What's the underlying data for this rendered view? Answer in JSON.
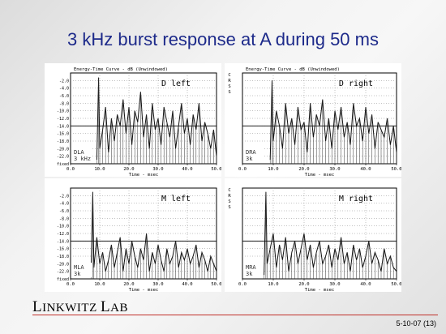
{
  "slide": {
    "title": "3 kHz burst response at A during 50 ms",
    "brand_first": "L",
    "brand_rest1": "INKWITZ ",
    "brand_second": "L",
    "brand_rest2": "AB",
    "date_page": "5-10-07 (13)"
  },
  "chart_data": [
    {
      "type": "line",
      "title": "Energy-Time Curve - dB (Unwindowed)",
      "panel_label": "D left",
      "annotation": [
        "DLA",
        "3 kHz"
      ],
      "xlabel": "Time - msec",
      "xlim": [
        0,
        50
      ],
      "ylim": [
        -24,
        0
      ],
      "xticks": [
        "0.0",
        "10.0",
        "20.0",
        "30.0",
        "40.0",
        "50.0"
      ],
      "yticks": [
        "-2.0",
        "-4.0",
        "-6.0",
        "-8.0",
        "-10.0",
        "-12.0",
        "-14.0",
        "-16.0",
        "-18.0",
        "-20.0",
        "-22.0"
      ],
      "y_bottom_label": "fixed",
      "reference_line": -14,
      "x": [
        9,
        9.6,
        10,
        11,
        12,
        13,
        14,
        15,
        16,
        17,
        18,
        19,
        20,
        21,
        22,
        23,
        24,
        25,
        26,
        27,
        28,
        29,
        30,
        31,
        32,
        33,
        34,
        35,
        36,
        37,
        38,
        39,
        40,
        41,
        42,
        43,
        44,
        45,
        46,
        47,
        48,
        49,
        50
      ],
      "y": [
        -23,
        -1.2,
        -20,
        -15,
        -9,
        -21,
        -12,
        -18,
        -11,
        -14,
        -7,
        -16,
        -9,
        -19,
        -10,
        -13,
        -5,
        -17,
        -11,
        -20,
        -8,
        -15,
        -12,
        -19,
        -9,
        -13,
        -17,
        -10,
        -20,
        -14,
        -8,
        -16,
        -12,
        -19,
        -11,
        -15,
        -8,
        -18,
        -13,
        -16,
        -20,
        -15,
        -22
      ]
    },
    {
      "type": "line",
      "title": "Energy-Time Curve - dB (Unwindowed)",
      "panel_label": "D right",
      "annotation": [
        "DRA",
        "3k"
      ],
      "side_label": "CRSS",
      "xlabel": "Time - msec",
      "xlim": [
        0,
        50
      ],
      "ylim": [
        -24,
        0
      ],
      "xticks": [
        "0.0",
        "10.0",
        "20.0",
        "30.0",
        "40.0",
        "50.0"
      ],
      "reference_line": -14,
      "x": [
        9,
        9.6,
        10,
        11,
        12,
        13,
        14,
        15,
        16,
        17,
        18,
        19,
        20,
        21,
        22,
        23,
        24,
        25,
        26,
        27,
        28,
        29,
        30,
        31,
        32,
        33,
        34,
        35,
        36,
        37,
        38,
        39,
        40,
        41,
        42,
        43,
        44,
        45,
        46,
        47,
        48,
        49,
        50
      ],
      "y": [
        -23,
        -2,
        -18,
        -10,
        -14,
        -20,
        -8,
        -16,
        -12,
        -19,
        -9,
        -15,
        -13,
        -21,
        -8,
        -17,
        -11,
        -14,
        -7,
        -18,
        -12,
        -20,
        -10,
        -15,
        -9,
        -17,
        -13,
        -19,
        -8,
        -14,
        -12,
        -18,
        -9,
        -16,
        -11,
        -20,
        -13,
        -15,
        -17,
        -12,
        -19,
        -14,
        -21
      ]
    },
    {
      "type": "line",
      "title": "",
      "panel_label": "M left",
      "annotation": [
        "MLA",
        "3k"
      ],
      "xlabel": "Time - msec",
      "xlim": [
        0,
        50
      ],
      "ylim": [
        -24,
        0
      ],
      "xticks": [
        "0.0",
        "10.0",
        "20.0",
        "30.0",
        "40.0",
        "50.0"
      ],
      "yticks": [
        "-2.0",
        "-4.0",
        "-6.0",
        "-8.0",
        "-10.0",
        "-12.0",
        "-14.0",
        "-16.0",
        "-18.0",
        "-20.0",
        "-22.0"
      ],
      "y_bottom_label": "fixed",
      "reference_line": -14,
      "x": [
        7,
        7.6,
        8,
        9,
        10,
        11,
        12,
        13,
        14,
        15,
        16,
        17,
        18,
        19,
        20,
        21,
        22,
        23,
        24,
        25,
        26,
        27,
        28,
        29,
        30,
        31,
        32,
        33,
        34,
        35,
        36,
        37,
        38,
        39,
        40,
        41,
        42,
        43,
        44,
        45,
        46,
        47,
        48,
        49,
        50
      ],
      "y": [
        -23,
        -1,
        -21,
        -13,
        -20,
        -17,
        -22,
        -19,
        -15,
        -21,
        -17,
        -13,
        -22,
        -16,
        -20,
        -14,
        -18,
        -21,
        -16,
        -19,
        -12,
        -22,
        -17,
        -20,
        -15,
        -19,
        -22,
        -16,
        -20,
        -18,
        -14,
        -21,
        -17,
        -19,
        -16,
        -20,
        -18,
        -15,
        -21,
        -17,
        -19,
        -22,
        -18,
        -20,
        -22
      ]
    },
    {
      "type": "line",
      "title": "",
      "panel_label": "M right",
      "annotation": [
        "MRA",
        "3k"
      ],
      "side_label": "CRSS",
      "xlabel": "Time - msec",
      "xlim": [
        0,
        50
      ],
      "ylim": [
        -24,
        0
      ],
      "xticks": [
        "0.0",
        "10.0",
        "20.0",
        "30.0",
        "40.0",
        "50.0"
      ],
      "reference_line": -14,
      "x": [
        7,
        7.6,
        8,
        9,
        10,
        11,
        12,
        13,
        14,
        15,
        16,
        17,
        18,
        19,
        20,
        21,
        22,
        23,
        24,
        25,
        26,
        27,
        28,
        29,
        30,
        31,
        32,
        33,
        34,
        35,
        36,
        37,
        38,
        39,
        40,
        41,
        42,
        43,
        44,
        45,
        46,
        47,
        48,
        49,
        50
      ],
      "y": [
        -23,
        -1,
        -20,
        -16,
        -12,
        -21,
        -15,
        -19,
        -13,
        -22,
        -17,
        -14,
        -20,
        -16,
        -12,
        -19,
        -15,
        -21,
        -17,
        -14,
        -20,
        -18,
        -15,
        -21,
        -16,
        -19,
        -13,
        -20,
        -17,
        -22,
        -15,
        -19,
        -16,
        -21,
        -18,
        -14,
        -20,
        -17,
        -19,
        -22,
        -16,
        -20,
        -18,
        -21,
        -22
      ]
    }
  ]
}
